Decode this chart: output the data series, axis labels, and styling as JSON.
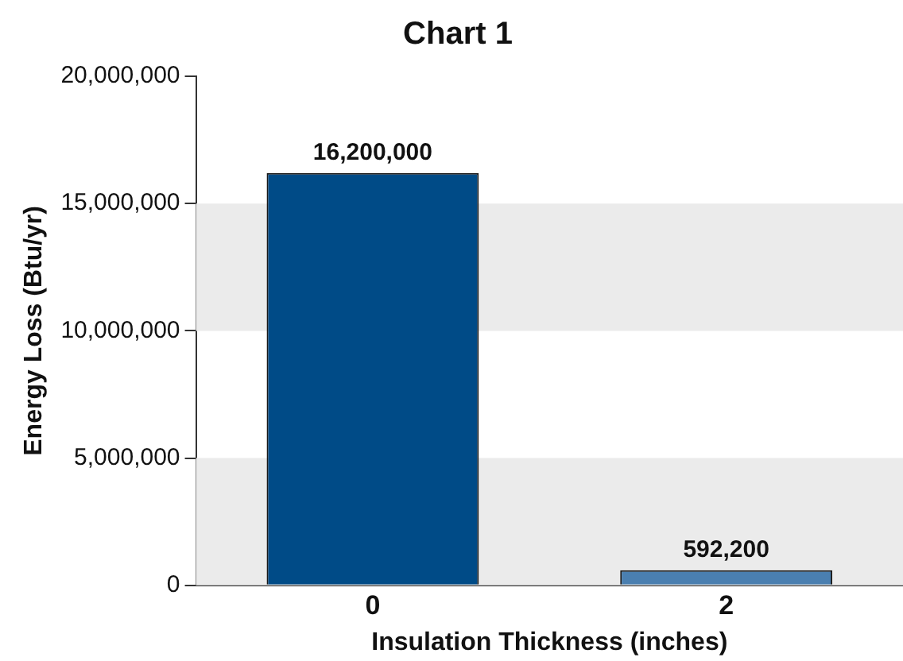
{
  "chart_data": {
    "type": "bar",
    "title": "Chart 1",
    "xlabel": "Insulation Thickness (inches)",
    "ylabel": "Energy Loss (Btu/yr)",
    "categories": [
      "0",
      "2"
    ],
    "values": [
      16200000,
      592200
    ],
    "value_labels": [
      "16,200,000",
      "592,200"
    ],
    "colors": [
      "#004b87",
      "#4a7fb0"
    ],
    "ylim": [
      0,
      20000000
    ],
    "yticks": [
      {
        "value": 0,
        "label": "0"
      },
      {
        "value": 5000000,
        "label": "5,000,000"
      },
      {
        "value": 10000000,
        "label": "10,000,000"
      },
      {
        "value": 15000000,
        "label": "15,000,000"
      },
      {
        "value": 20000000,
        "label": "20,000,000"
      }
    ],
    "bands": [
      {
        "axis": "y",
        "from": 0,
        "to": 5000000,
        "color": "#ebebeb"
      },
      {
        "axis": "y",
        "from": 10000000,
        "to": 15000000,
        "color": "#ebebeb"
      }
    ],
    "grid": false,
    "legend": false
  }
}
